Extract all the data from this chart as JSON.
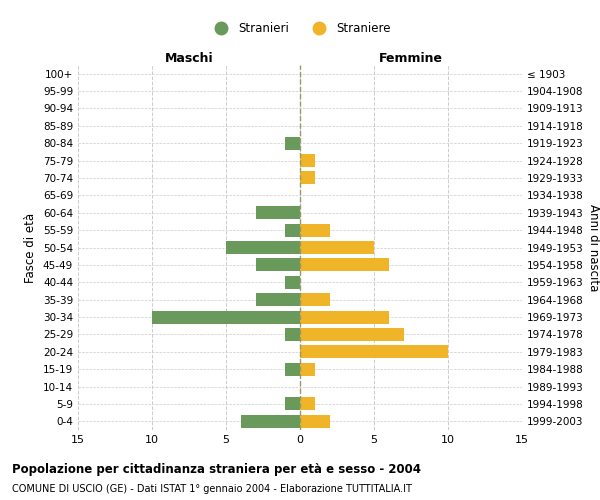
{
  "age_groups": [
    "100+",
    "95-99",
    "90-94",
    "85-89",
    "80-84",
    "75-79",
    "70-74",
    "65-69",
    "60-64",
    "55-59",
    "50-54",
    "45-49",
    "40-44",
    "35-39",
    "30-34",
    "25-29",
    "20-24",
    "15-19",
    "10-14",
    "5-9",
    "0-4"
  ],
  "birth_years": [
    "≤ 1903",
    "1904-1908",
    "1909-1913",
    "1914-1918",
    "1919-1923",
    "1924-1928",
    "1929-1933",
    "1934-1938",
    "1939-1943",
    "1944-1948",
    "1949-1953",
    "1954-1958",
    "1959-1963",
    "1964-1968",
    "1969-1973",
    "1974-1978",
    "1979-1983",
    "1984-1988",
    "1989-1993",
    "1994-1998",
    "1999-2003"
  ],
  "males": [
    0,
    0,
    0,
    0,
    1,
    0,
    0,
    0,
    3,
    1,
    5,
    3,
    1,
    3,
    10,
    1,
    0,
    1,
    0,
    1,
    4
  ],
  "females": [
    0,
    0,
    0,
    0,
    0,
    1,
    1,
    0,
    0,
    2,
    5,
    6,
    0,
    2,
    6,
    7,
    10,
    1,
    0,
    1,
    2
  ],
  "male_color": "#6a9a5b",
  "female_color": "#f0b429",
  "background_color": "#ffffff",
  "grid_color": "#cccccc",
  "dashed_line_color": "#999966",
  "title": "Popolazione per cittadinanza straniera per età e sesso - 2004",
  "subtitle": "COMUNE DI USCIO (GE) - Dati ISTAT 1° gennaio 2004 - Elaborazione TUTTITALIA.IT",
  "xlabel_left": "Maschi",
  "xlabel_right": "Femmine",
  "ylabel_left": "Fasce di età",
  "ylabel_right": "Anni di nascita",
  "legend_male": "Stranieri",
  "legend_female": "Straniere",
  "xlim": 15,
  "bar_height": 0.75
}
